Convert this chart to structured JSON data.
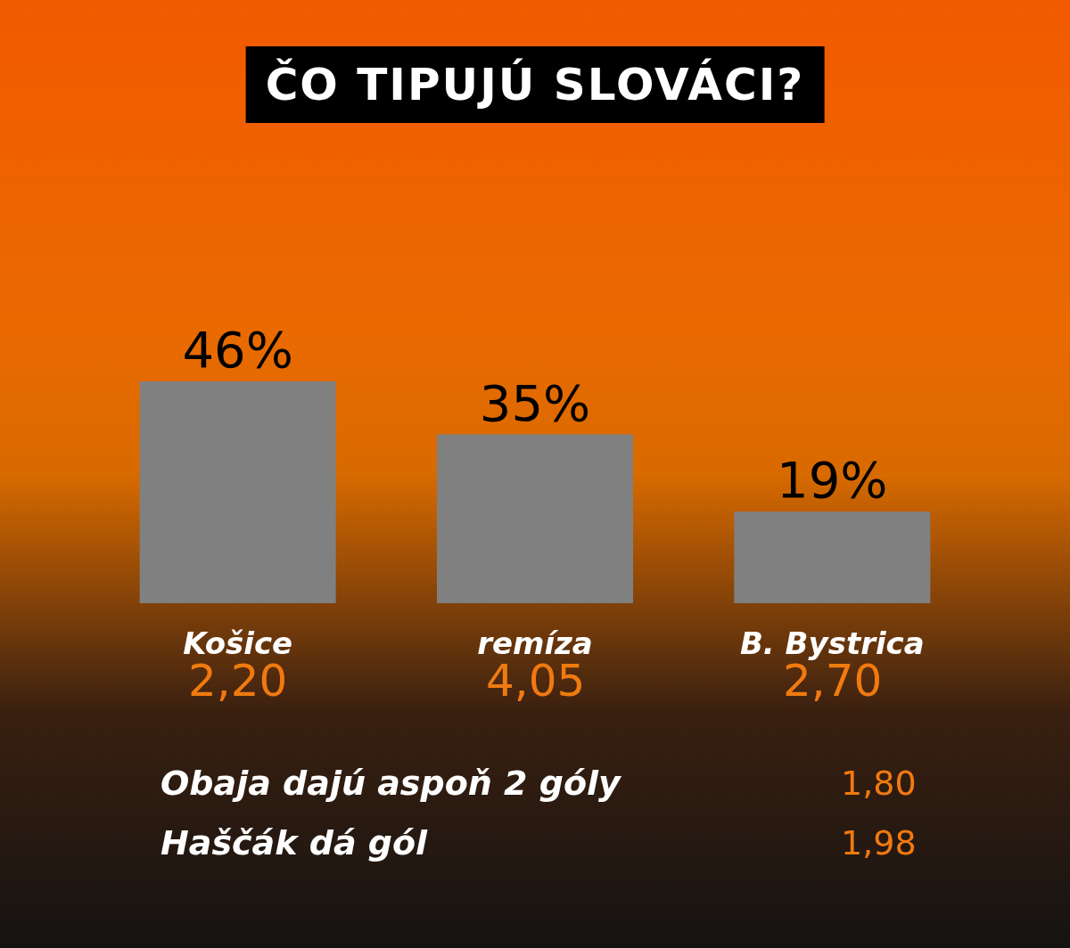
{
  "chart_data": {
    "type": "bar",
    "title": "ČO TIPUJÚ SLOVÁCI?",
    "categories": [
      "Košice",
      "remíza",
      "B. Bystrica"
    ],
    "values": [
      46,
      35,
      19
    ],
    "value_labels": [
      "46%",
      "35%",
      "19%"
    ],
    "color": "#808080",
    "tick_labels": "x",
    "annotations": [
      "2,20",
      "4,05",
      "2,70",
      "Obaja dajú aspoň 2 góly",
      "1,80",
      "Haščák dá gól",
      "1,98"
    ]
  }
}
